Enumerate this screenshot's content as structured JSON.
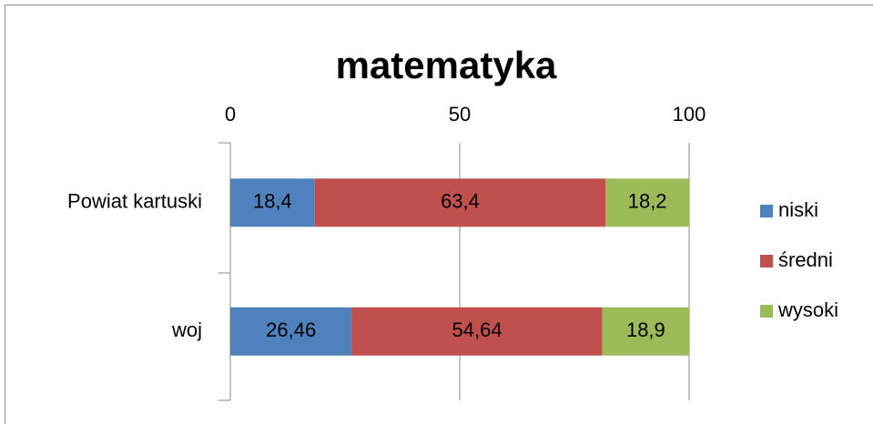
{
  "chart_data": {
    "type": "stacked_bar_horizontal",
    "title": "matematyka",
    "categories": [
      "Powiat kartuski",
      "woj"
    ],
    "series": [
      {
        "name": "niski",
        "color": "#4f81bd",
        "values": [
          18.4,
          26.46
        ],
        "value_labels": [
          "18,4",
          "26,46"
        ]
      },
      {
        "name": "średni",
        "color": "#c0504d",
        "values": [
          63.4,
          54.64
        ],
        "value_labels": [
          "63,4",
          "54,64"
        ]
      },
      {
        "name": "wysoki",
        "color": "#9bbb59",
        "values": [
          18.2,
          18.9
        ],
        "value_labels": [
          "18,2",
          "18,9"
        ]
      }
    ],
    "xlim": [
      0,
      100
    ],
    "xticks": [
      0,
      50,
      100
    ],
    "grid": true,
    "legend": "right"
  }
}
